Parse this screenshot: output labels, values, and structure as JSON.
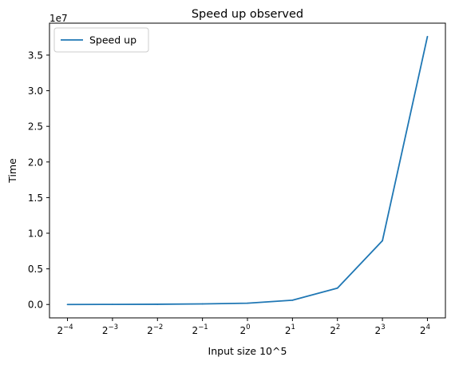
{
  "chart_data": {
    "type": "line",
    "title": "Speed up observed",
    "xlabel": "Input size 10^5",
    "ylabel": "Time",
    "y_offset_label": "1e7",
    "x_scale": "log2",
    "x": [
      0.0625,
      0.125,
      0.25,
      0.5,
      1,
      2,
      4,
      8,
      16
    ],
    "x_tick_labels": [
      {
        "base": "2",
        "exp": "−4"
      },
      {
        "base": "2",
        "exp": "−3"
      },
      {
        "base": "2",
        "exp": "−2"
      },
      {
        "base": "2",
        "exp": "−1"
      },
      {
        "base": "2",
        "exp": "0"
      },
      {
        "base": "2",
        "exp": "1"
      },
      {
        "base": "2",
        "exp": "2"
      },
      {
        "base": "2",
        "exp": "3"
      },
      {
        "base": "2",
        "exp": "4"
      }
    ],
    "y_ticks": [
      0,
      5000000,
      10000000,
      15000000,
      20000000,
      25000000,
      30000000,
      35000000
    ],
    "y_tick_labels": [
      "0.0",
      "0.5",
      "1.0",
      "1.5",
      "2.0",
      "2.5",
      "3.0",
      "3.5"
    ],
    "ylim": [
      -1880000,
      39480000
    ],
    "series": [
      {
        "name": "Speed up",
        "color": "#1f77b4",
        "values": [
          0,
          10000,
          30000,
          80000,
          180000,
          600000,
          2300000,
          8950000,
          37600000
        ]
      }
    ],
    "legend": "top-left",
    "grid": false
  }
}
